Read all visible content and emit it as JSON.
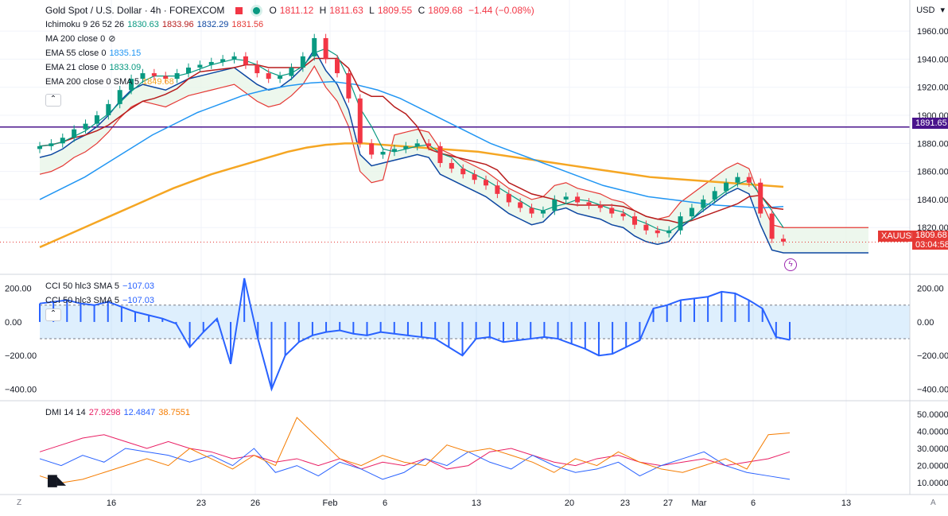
{
  "header": {
    "symbol_title": "Gold Spot / U.S. Dollar · 4h · FOREXCOM",
    "ohlc": {
      "o_label": "O",
      "o": "1811.12",
      "h_label": "H",
      "h": "1811.63",
      "l_label": "L",
      "l": "1809.55",
      "c_label": "C",
      "c": "1809.68",
      "change": "−1.44 (−0.08%)"
    },
    "currency": "USD"
  },
  "indicators": [
    {
      "name": "Ichimoku 9 26 52 26",
      "values": [
        "1830.63",
        "1833.96",
        "1832.29",
        "1831.56"
      ],
      "colors": [
        "#089981",
        "#b71c1c",
        "#0d47a1",
        "#e53935"
      ]
    },
    {
      "name": "MA 200 close 0",
      "values": [],
      "colors": []
    },
    {
      "name": "EMA 55 close 0",
      "values": [
        "1835.15"
      ],
      "colors": [
        "#2196f3"
      ]
    },
    {
      "name": "EMA 21 close 0",
      "values": [
        "1833.09"
      ],
      "colors": [
        "#089981"
      ]
    },
    {
      "name": "EMA 200 close 0 SMA 5",
      "values": [
        "1849.68"
      ],
      "colors": [
        "#f5a623"
      ]
    }
  ],
  "cci_legend": [
    {
      "name": "CCI 50 hlc3 SMA 5",
      "value": "−107.03"
    },
    {
      "name": "CCI 50 hlc3 SMA 5",
      "value": "−107.03"
    }
  ],
  "dmi_legend": {
    "name": "DMI 14 14",
    "values": [
      "27.9298",
      "12.4847",
      "38.7551"
    ],
    "colors": [
      "#e91e63",
      "#2962ff",
      "#f57c00"
    ]
  },
  "price_axis": {
    "ticks": [
      "1960.00",
      "1940.00",
      "1920.00",
      "1900.00",
      "1880.00",
      "1860.00",
      "1840.00",
      "1820.00"
    ],
    "values": [
      1960,
      1940,
      1920,
      1900,
      1880,
      1860,
      1840,
      1820
    ]
  },
  "cci_axis": {
    "ticks": [
      "200.00",
      "0.00",
      "−200.00",
      "−400.00"
    ],
    "values": [
      200,
      0,
      -200,
      -400
    ]
  },
  "dmi_axis": {
    "ticks": [
      "50.0000",
      "40.0000",
      "30.0000",
      "20.0000",
      "10.0000"
    ],
    "values": [
      50,
      40,
      30,
      20,
      10
    ]
  },
  "time_axis": {
    "labels": [
      "16",
      "23",
      "26",
      "Feb",
      "6",
      "13",
      "20",
      "23",
      "27",
      "Mar",
      "6",
      "13"
    ]
  },
  "horizontal_line": {
    "value": 1891.65,
    "label": "1891.65",
    "color": "#4a148c"
  },
  "last_price": {
    "symbol": "XAUUSD",
    "price": "1809.68",
    "countdown": "03:04:58",
    "color": "#e53935"
  },
  "corner_labels": {
    "left": "Z",
    "right": "A"
  },
  "chart_data": [
    {
      "type": "line",
      "title": "Gold Spot / U.S. Dollar · 4h · FOREXCOM",
      "xlabel": "",
      "ylabel": "",
      "ylim": [
        1802,
        1968
      ],
      "series": [
        {
          "name": "Price",
          "values": [
            1878,
            1880,
            1884,
            1890,
            1894,
            1900,
            1908,
            1918,
            1926,
            1930,
            1928,
            1926,
            1930,
            1934,
            1936,
            1938,
            1940,
            1942,
            1936,
            1930,
            1926,
            1928,
            1934,
            1942,
            1955,
            1940,
            1930,
            1912,
            1880,
            1872,
            1874,
            1876,
            1878,
            1880,
            1878,
            1866,
            1862,
            1858,
            1854,
            1850,
            1844,
            1838,
            1834,
            1830,
            1832,
            1840,
            1842,
            1838,
            1836,
            1834,
            1830,
            1828,
            1822,
            1818,
            1816,
            1818,
            1828,
            1834,
            1840,
            1846,
            1852,
            1856,
            1852,
            1830,
            1812,
            1810
          ]
        },
        {
          "name": "EMA 200",
          "values": [
            1806,
            1812,
            1818,
            1824,
            1830,
            1836,
            1842,
            1848,
            1853,
            1858,
            1862,
            1866,
            1870,
            1874,
            1877,
            1879,
            1880,
            1880,
            1879,
            1878,
            1877,
            1876,
            1875,
            1874,
            1872,
            1870,
            1868,
            1866,
            1864,
            1862,
            1860,
            1858,
            1856,
            1855,
            1854,
            1853,
            1852,
            1851,
            1850,
            1849
          ]
        },
        {
          "name": "EMA 55",
          "values": [
            1840,
            1848,
            1856,
            1866,
            1876,
            1886,
            1894,
            1902,
            1908,
            1914,
            1918,
            1921,
            1923,
            1924,
            1922,
            1918,
            1912,
            1904,
            1896,
            1888,
            1880,
            1874,
            1868,
            1862,
            1856,
            1850,
            1846,
            1842,
            1840,
            1838,
            1836,
            1835,
            1834,
            1835
          ]
        }
      ]
    },
    {
      "type": "bar",
      "title": "CCI 50 hlc3 SMA 5",
      "ylim": [
        -450,
        260
      ],
      "bands": [
        100,
        -100
      ],
      "values": [
        110,
        120,
        130,
        110,
        100,
        120,
        90,
        60,
        40,
        20,
        -10,
        -150,
        -60,
        20,
        -250,
        260,
        -100,
        -400,
        -200,
        -120,
        -80,
        -60,
        -50,
        -70,
        -80,
        -60,
        -70,
        -80,
        -90,
        -100,
        -150,
        -200,
        -100,
        -90,
        -120,
        -110,
        -100,
        -90,
        -100,
        -130,
        -160,
        -200,
        -190,
        -150,
        -110,
        80,
        100,
        130,
        140,
        150,
        180,
        170,
        130,
        80,
        -90,
        -107
      ]
    },
    {
      "type": "line",
      "title": "DMI 14 14",
      "ylim": [
        5,
        55
      ],
      "series": [
        {
          "name": "",
          "color": "#e91e63",
          "values": [
            28,
            32,
            36,
            38,
            34,
            30,
            34,
            30,
            28,
            24,
            26,
            22,
            24,
            20,
            24,
            18,
            22,
            20,
            24,
            18,
            20,
            28,
            30,
            26,
            22,
            20,
            24,
            26,
            22,
            20,
            22,
            24,
            20,
            22,
            24,
            28
          ]
        },
        {
          "name": "",
          "color": "#2962ff",
          "values": [
            24,
            20,
            26,
            22,
            30,
            28,
            26,
            22,
            26,
            20,
            30,
            16,
            20,
            14,
            22,
            18,
            12,
            16,
            24,
            20,
            28,
            22,
            18,
            26,
            20,
            16,
            18,
            22,
            14,
            20,
            24,
            28,
            20,
            16,
            14,
            12
          ]
        },
        {
          "name": "",
          "color": "#f57c00",
          "values": [
            14,
            10,
            12,
            16,
            20,
            24,
            20,
            30,
            24,
            18,
            26,
            20,
            48,
            36,
            24,
            20,
            26,
            22,
            20,
            32,
            28,
            30,
            26,
            22,
            16,
            24,
            20,
            28,
            22,
            18,
            16,
            20,
            24,
            18,
            38,
            39
          ]
        }
      ]
    }
  ]
}
